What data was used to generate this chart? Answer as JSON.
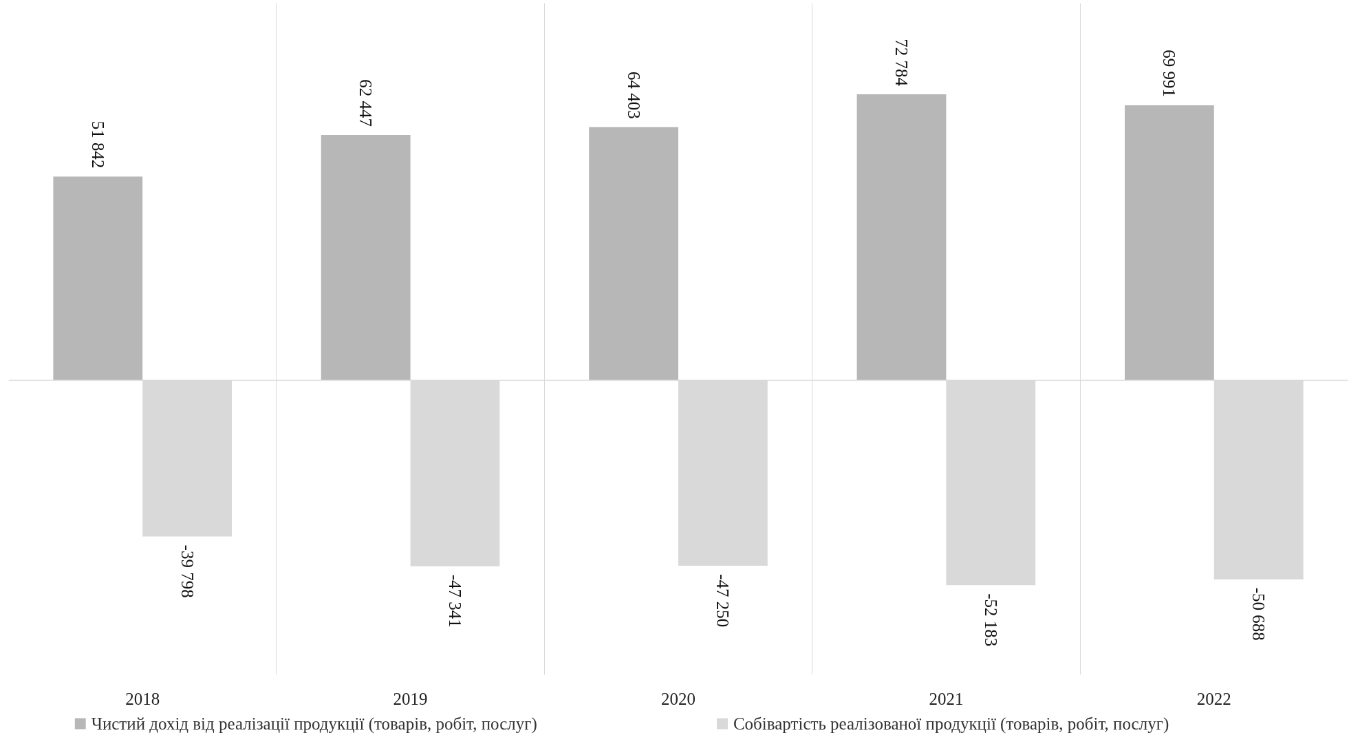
{
  "chart_data": {
    "type": "bar",
    "categories": [
      "2018",
      "2019",
      "2020",
      "2021",
      "2022"
    ],
    "series": [
      {
        "name": "Чистий дохід від реалізації продукції (товарів, робіт, послуг)",
        "color": "#b7b7b7",
        "values": [
          51842,
          62447,
          64403,
          72784,
          69991
        ]
      },
      {
        "name": "Собівартість реалізованої продукції (товарів, робіт, послуг)",
        "color": "#d9d9d9",
        "values": [
          -39798,
          -47341,
          -47250,
          -52183,
          -50688
        ]
      }
    ],
    "ylim": [
      -75000,
      96000
    ],
    "data_labels": true,
    "grid": "x",
    "legend": "bottom",
    "tick_labels": "x"
  }
}
